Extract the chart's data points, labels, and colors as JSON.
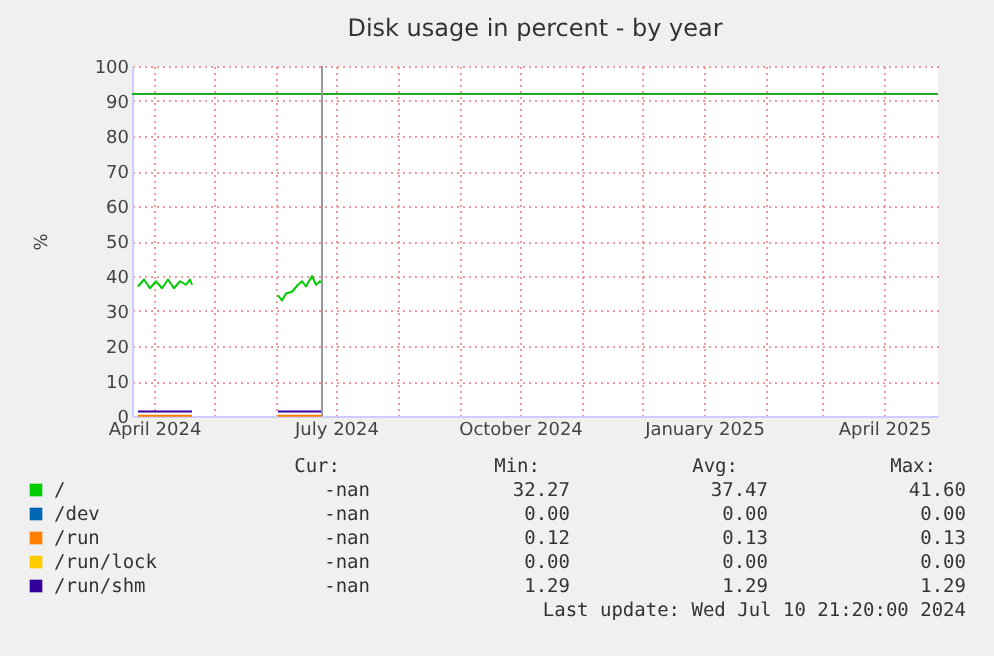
{
  "chart_data": {
    "type": "line",
    "title": "Disk usage in percent - by year",
    "ylabel": "%",
    "xlim": [
      "2024-03-21",
      "2025-04-28"
    ],
    "ylim": [
      0,
      100
    ],
    "xticks": [
      {
        "value": "2024-04-01",
        "label": "April 2024"
      },
      {
        "value": "2024-05-01",
        "label": null
      },
      {
        "value": "2024-06-01",
        "label": null
      },
      {
        "value": "2024-07-01",
        "label": "July 2024"
      },
      {
        "value": "2024-08-01",
        "label": null
      },
      {
        "value": "2024-09-01",
        "label": null
      },
      {
        "value": "2024-10-01",
        "label": "October 2024"
      },
      {
        "value": "2024-11-01",
        "label": null
      },
      {
        "value": "2024-12-01",
        "label": null
      },
      {
        "value": "2025-01-01",
        "label": "January 2025"
      },
      {
        "value": "2025-02-01",
        "label": null
      },
      {
        "value": "2025-03-01",
        "label": null
      },
      {
        "value": "2025-04-01",
        "label": "April 2025"
      }
    ],
    "yticks": [
      0,
      10,
      20,
      30,
      40,
      50,
      60,
      70,
      80,
      90,
      100
    ],
    "grid": true,
    "legend": "bottom",
    "line_style": "solid",
    "marker": "none",
    "series": [
      {
        "name": "/",
        "color": "#00cc00",
        "x": [
          "2024-03-24",
          "2024-03-27",
          "2024-03-30",
          "2024-04-02",
          "2024-04-05",
          "2024-04-08",
          "2024-04-11",
          "2024-04-14",
          "2024-04-17",
          "2024-04-19",
          "2024-04-20",
          "2024-05-15",
          "2024-06-02",
          "2024-06-04",
          "2024-06-06",
          "2024-06-09",
          "2024-06-12",
          "2024-06-14",
          "2024-06-16",
          "2024-06-19",
          "2024-06-21",
          "2024-06-23",
          "2024-06-24"
        ],
        "values": [
          37,
          39,
          36.5,
          38.5,
          36.5,
          39,
          36.5,
          38.5,
          37.5,
          39,
          37.5,
          null,
          34.5,
          33,
          35,
          35.5,
          37.5,
          38.5,
          37,
          40,
          37.5,
          38.5,
          38
        ]
      },
      {
        "name": "/dev",
        "color": "#0066b3"
      },
      {
        "name": "/run",
        "color": "#ff8000",
        "x": [
          "2024-03-24",
          "2024-04-20",
          "2024-05-15",
          "2024-06-02",
          "2024-06-24"
        ],
        "values": [
          0.1,
          0.1,
          null,
          0.1,
          0.1
        ]
      },
      {
        "name": "/run/lock",
        "color": "#ffcc00"
      },
      {
        "name": "/run/shm",
        "color": "#330099",
        "x": [
          "2024-03-24",
          "2024-04-20",
          "2024-05-15",
          "2024-06-02",
          "2024-06-24"
        ],
        "values": [
          1.3,
          1.3,
          null,
          1.3,
          1.3
        ]
      }
    ],
    "ref_lines": [
      {
        "axis": "y",
        "value": 92,
        "color": "#22aa22"
      },
      {
        "axis": "x",
        "value": "2024-06-24",
        "color": "#999999"
      }
    ],
    "annotations": [
      "Cur:",
      "Min:",
      "Avg:",
      "Max:",
      "-nan",
      "32.27",
      "37.47",
      "41.60",
      "-nan",
      "0.00",
      "0.00",
      "0.00",
      "-nan",
      "0.12",
      "0.13",
      "0.13",
      "-nan",
      "0.00",
      "0.00",
      "0.00",
      "-nan",
      "1.29",
      "1.29",
      "1.29",
      "Last update: Wed Jul 10 21:20:00 2024"
    ]
  }
}
